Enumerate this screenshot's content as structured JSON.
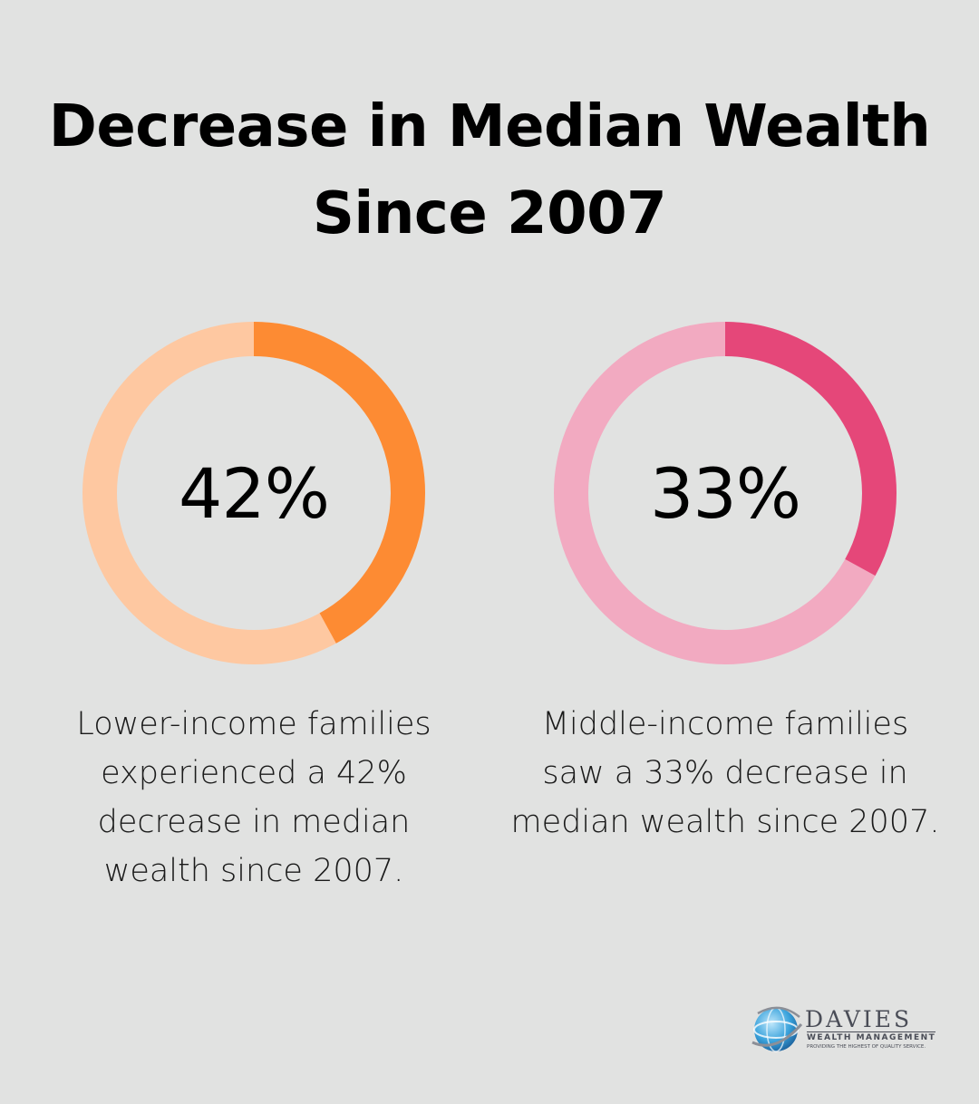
{
  "chart_data": [
    {
      "type": "pie",
      "subtype": "donut",
      "title": "Decrease in Median Wealth Since 2007",
      "value": 42,
      "value_label": "42%",
      "max": 100,
      "colors": {
        "filled": "#fd8b33",
        "remaining": "#fec8a1"
      },
      "caption_lines": [
        "Lower-income families",
        "experienced a 42%",
        "decrease in median",
        "wealth since 2007."
      ]
    },
    {
      "type": "pie",
      "subtype": "donut",
      "title": "Decrease in Median Wealth Since 2007",
      "value": 33,
      "value_label": "33%",
      "max": 100,
      "colors": {
        "filled": "#e54779",
        "remaining": "#f2aac1"
      },
      "caption_lines": [
        "Middle-income families",
        "saw a 33% decrease in",
        "median wealth since 2007."
      ]
    }
  ],
  "header": {
    "title_lines": [
      "Decrease in Median Wealth",
      "Since 2007"
    ]
  },
  "logo": {
    "name": "DAVIES",
    "subtitle": "WEALTH MANAGEMENT",
    "tagline": "PROVIDING THE HIGHEST OF QUALITY SERVICE.",
    "icon": "globe-icon"
  }
}
